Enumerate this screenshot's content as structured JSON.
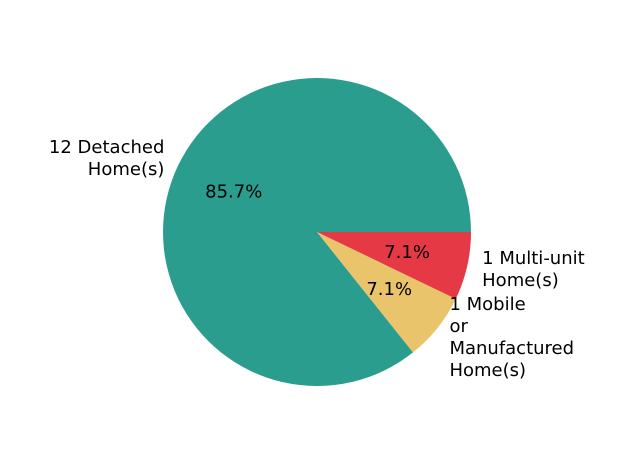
{
  "chart_data": {
    "type": "pie",
    "slices": [
      {
        "label_lines": [
          "12 Detached",
          "Home(s)"
        ],
        "value": 12,
        "percent_label": "85.7%",
        "color": "#2a9d8f"
      },
      {
        "label_lines": [
          "1 Mobile",
          "or",
          "Manufactured",
          "Home(s)"
        ],
        "value": 1,
        "percent_label": "7.1%",
        "color": "#e9c46a"
      },
      {
        "label_lines": [
          "1 Multi-unit",
          "Home(s)"
        ],
        "value": 1,
        "percent_label": "7.1%",
        "color": "#e63946"
      }
    ],
    "start_angle_deg": 0,
    "direction": "counterclockwise"
  }
}
